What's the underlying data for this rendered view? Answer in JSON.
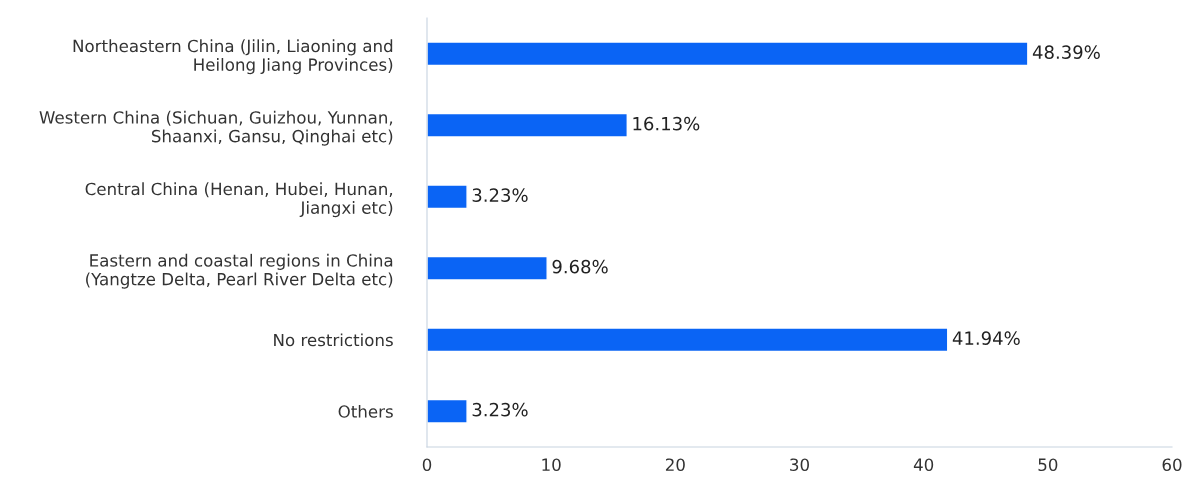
{
  "chart_data": {
    "type": "bar",
    "orientation": "horizontal",
    "categories": [
      "Northeastern China (Jilin, Liaoning and\nHeilong Jiang Provinces)",
      "Western China (Sichuan, Guizhou, Yunnan,\nShaanxi, Gansu, Qinghai etc)",
      "Central China (Henan, Hubei, Hunan,\nJiangxi etc)",
      "Eastern and coastal regions in China\n(Yangtze Delta, Pearl River Delta etc)",
      "No restrictions",
      "Others"
    ],
    "values": [
      48.39,
      16.13,
      3.23,
      9.68,
      41.94,
      3.23
    ],
    "value_labels": [
      "48.39%",
      "16.13%",
      "3.23%",
      "9.68%",
      "41.94%",
      "3.23%"
    ],
    "color": "#0a64f5",
    "xlim": [
      0,
      60
    ],
    "xticks": [
      0,
      10,
      20,
      30,
      40,
      50,
      60
    ],
    "grid": false,
    "legend": false
  }
}
